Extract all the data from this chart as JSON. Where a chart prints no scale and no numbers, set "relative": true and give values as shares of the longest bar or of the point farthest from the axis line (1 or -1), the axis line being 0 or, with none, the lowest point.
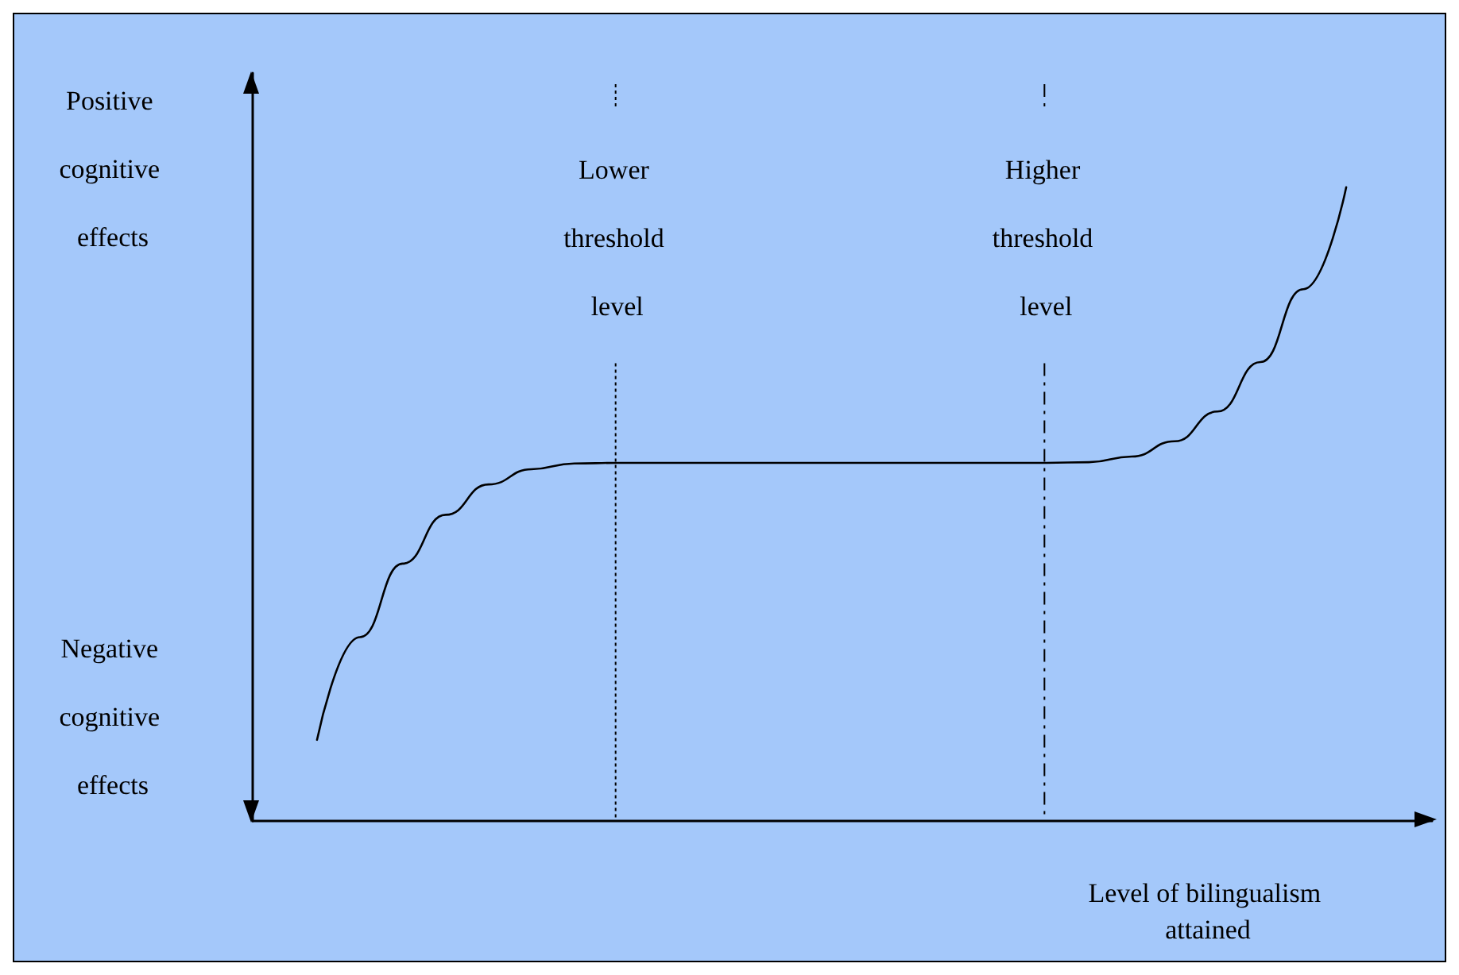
{
  "chart_data": {
    "type": "line",
    "relative": true,
    "categories": [
      null,
      null,
      null,
      null,
      null,
      null,
      null,
      null,
      null,
      null,
      null,
      null,
      null,
      null,
      null,
      null,
      null,
      null,
      null,
      null,
      null,
      null,
      null,
      null,
      null
    ],
    "series": [
      {
        "color": "#000000",
        "values": [
          0.128,
          0.29,
          0.406,
          0.483,
          0.531,
          0.555,
          0.564,
          0.565,
          0.565,
          0.565,
          0.565,
          0.565,
          0.565,
          0.565,
          0.565,
          0.565,
          0.565,
          0.565,
          0.566,
          0.575,
          0.599,
          0.646,
          0.724,
          0.839,
          1.0
        ]
      }
    ],
    "xlabel": "Level of bilingualism attained",
    "annotations": [
      "Positive cognitive effects",
      "Negative cognitive effects",
      "Lower threshold level",
      "Higher threshold level"
    ],
    "marker": "none",
    "line_style": "solid",
    "grid": false
  }
}
